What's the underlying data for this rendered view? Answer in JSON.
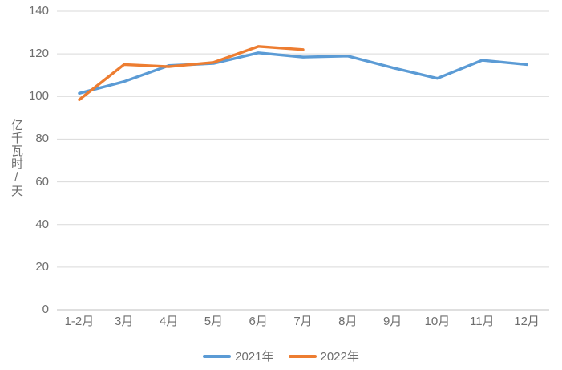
{
  "chart_data": {
    "type": "line",
    "categories": [
      "1-2月",
      "3月",
      "4月",
      "5月",
      "6月",
      "7月",
      "8月",
      "9月",
      "10月",
      "11月",
      "12月"
    ],
    "series": [
      {
        "name": "2021年",
        "color": "#5B9BD5",
        "values": [
          101.5,
          107,
          114.5,
          115.5,
          120.5,
          118.5,
          119,
          113.5,
          108.5,
          117,
          115
        ]
      },
      {
        "name": "2022年",
        "color": "#ED7D31",
        "values": [
          98.5,
          115,
          114,
          116,
          123.5,
          122,
          null,
          null,
          null,
          null,
          null
        ]
      }
    ],
    "title": "",
    "xlabel": "",
    "ylabel": "亿千瓦时/天",
    "ylim": [
      0,
      140
    ],
    "yticks": [
      0,
      20,
      40,
      60,
      80,
      100,
      120,
      140
    ],
    "grid": true,
    "legend_position": "bottom"
  },
  "colors": {
    "gridline": "#D9D9D9",
    "axis_line": "#BFBFBF",
    "tick_text": "#6E6E6E",
    "series_2021": "#5B9BD5",
    "series_2022": "#ED7D31"
  }
}
